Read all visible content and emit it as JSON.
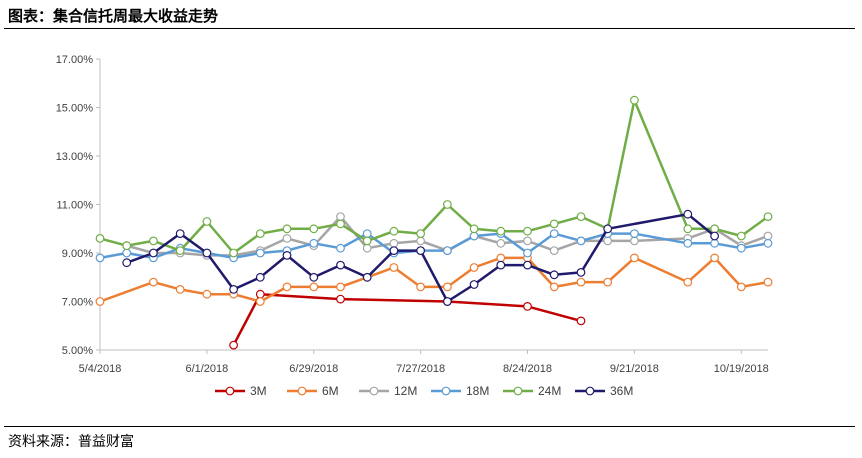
{
  "header": {
    "title": "图表：集合信托周最大收益走势"
  },
  "footer": {
    "source": "资料来源：普益财富"
  },
  "chart_data": {
    "type": "line",
    "title": "",
    "xlabel": "",
    "ylabel": "",
    "ylim": [
      5.0,
      17.0
    ],
    "yticks": [
      "5.00%",
      "7.00%",
      "9.00%",
      "11.00%",
      "13.00%",
      "15.00%",
      "17.00%"
    ],
    "xticks": [
      "5/4/2018",
      "6/1/2018",
      "6/29/2018",
      "7/27/2018",
      "8/24/2018",
      "9/21/2018",
      "10/19/2018"
    ],
    "x": [
      "5/4",
      "5/11",
      "5/18",
      "5/25",
      "6/1",
      "6/8",
      "6/15",
      "6/22",
      "6/29",
      "7/6",
      "7/13",
      "7/20",
      "7/27",
      "8/3",
      "8/10",
      "8/17",
      "8/24",
      "8/31",
      "9/7",
      "9/14",
      "9/21",
      "9/28",
      "10/5",
      "10/12",
      "10/19",
      "10/26"
    ],
    "legend_position": "bottom",
    "grid": false,
    "series": [
      {
        "name": "3M",
        "color": "#C00000",
        "values": [
          null,
          null,
          null,
          null,
          null,
          5.2,
          7.3,
          null,
          null,
          7.1,
          null,
          null,
          null,
          7.0,
          null,
          null,
          6.8,
          null,
          6.2,
          null,
          null,
          null,
          null,
          null,
          null,
          null
        ]
      },
      {
        "name": "6M",
        "color": "#ED7D31",
        "values": [
          7.0,
          null,
          7.8,
          7.5,
          7.3,
          7.3,
          7.0,
          7.6,
          7.6,
          7.6,
          8.0,
          8.4,
          7.6,
          7.6,
          8.4,
          8.8,
          8.8,
          7.6,
          7.8,
          7.8,
          8.8,
          null,
          7.8,
          8.8,
          7.6,
          7.8
        ]
      },
      {
        "name": "12M",
        "color": "#A5A5A5",
        "values": [
          null,
          9.3,
          9.0,
          9.0,
          8.9,
          8.9,
          9.1,
          9.6,
          9.3,
          10.5,
          9.2,
          9.4,
          9.5,
          9.1,
          9.7,
          9.4,
          9.5,
          9.1,
          9.5,
          9.5,
          9.5,
          null,
          9.6,
          10.0,
          9.3,
          9.7
        ]
      },
      {
        "name": "18M",
        "color": "#5B9BD5",
        "values": [
          8.8,
          9.0,
          8.8,
          9.2,
          9.0,
          8.8,
          9.0,
          9.1,
          9.4,
          9.2,
          9.8,
          9.0,
          9.1,
          9.1,
          9.7,
          9.8,
          9.0,
          9.8,
          9.5,
          9.8,
          9.8,
          null,
          9.4,
          9.4,
          9.2,
          9.4
        ]
      },
      {
        "name": "24M",
        "color": "#70AD47",
        "values": [
          9.6,
          9.3,
          9.5,
          9.1,
          10.3,
          9.0,
          9.8,
          10.0,
          10.0,
          10.2,
          9.5,
          9.9,
          9.8,
          11.0,
          10.0,
          9.9,
          9.9,
          10.2,
          10.5,
          10.0,
          15.3,
          null,
          10.0,
          10.0,
          9.7,
          10.5
        ]
      },
      {
        "name": "36M",
        "color": "#1F1A6B",
        "values": [
          null,
          8.6,
          9.0,
          9.8,
          9.0,
          7.5,
          8.0,
          8.9,
          8.0,
          8.5,
          8.0,
          9.1,
          9.1,
          7.0,
          7.7,
          8.5,
          8.5,
          8.1,
          8.2,
          10.0,
          null,
          null,
          10.6,
          9.7,
          null,
          null
        ]
      }
    ]
  }
}
